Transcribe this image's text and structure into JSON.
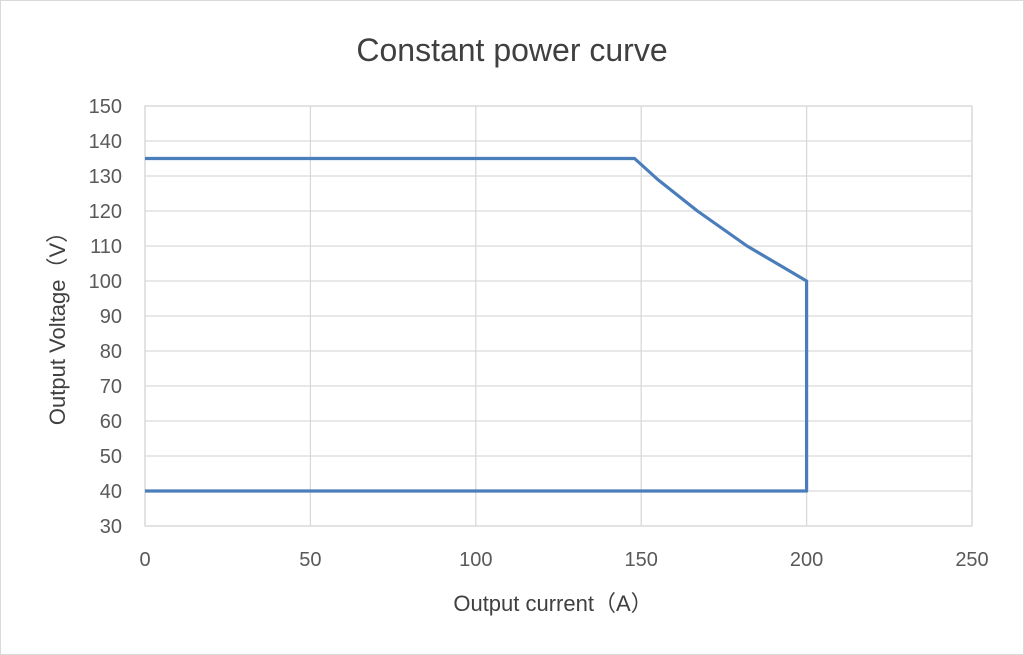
{
  "chart_data": {
    "type": "line",
    "title": "Constant power curve",
    "xlabel": "Output current（A）",
    "ylabel": "Output Voltage（V）",
    "xlim": [
      0,
      250
    ],
    "ylim": [
      30,
      150
    ],
    "x_ticks": [
      0,
      50,
      100,
      150,
      200,
      250
    ],
    "y_ticks": [
      30,
      40,
      50,
      60,
      70,
      80,
      90,
      100,
      110,
      120,
      130,
      140,
      150
    ],
    "grid": true,
    "legend": "none",
    "series": [
      {
        "color": "#4a7ebb",
        "points": [
          [
            0,
            135
          ],
          [
            148,
            135
          ],
          [
            155,
            129
          ],
          [
            167,
            120
          ],
          [
            182,
            110
          ],
          [
            200,
            100
          ],
          [
            200,
            40
          ],
          [
            0,
            40
          ]
        ]
      }
    ]
  }
}
